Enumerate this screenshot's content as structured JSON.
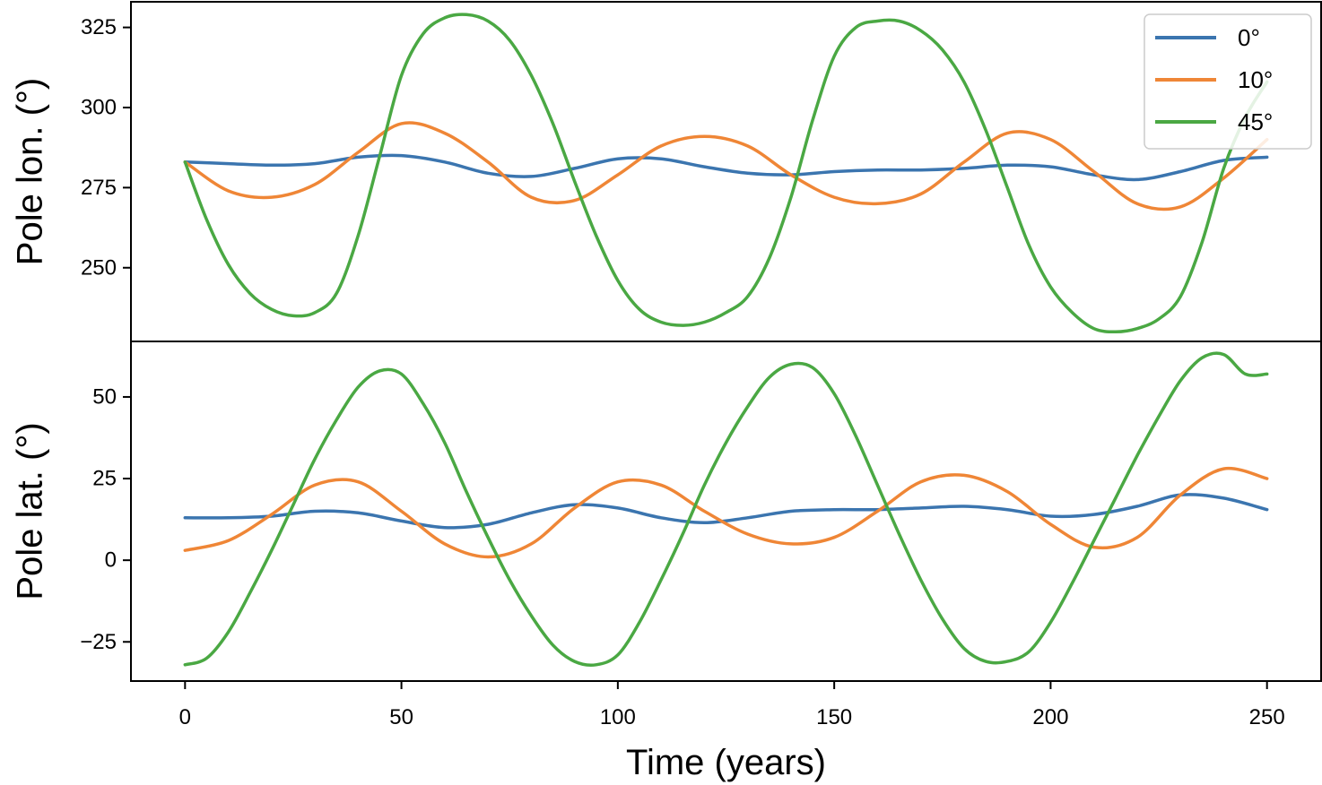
{
  "chart_data": {
    "type": "line",
    "xlabel": "Time (years)",
    "xlim": [
      -12.5,
      262.5
    ],
    "xticks": [
      0,
      50,
      100,
      150,
      200,
      250
    ],
    "xtick_labels": [
      "0",
      "50",
      "100",
      "150",
      "200",
      "250"
    ],
    "legend": {
      "placement": "top-right",
      "entries": [
        {
          "label": "0°",
          "color": "#3b75af"
        },
        {
          "label": "10°",
          "color": "#ef8636"
        },
        {
          "label": "45°",
          "color": "#4aa843"
        }
      ]
    },
    "panels": [
      {
        "id": "lon",
        "ylabel": "Pole lon. (°)",
        "ylim": [
          227,
          333
        ],
        "yticks": [
          250,
          275,
          300,
          325
        ],
        "ytick_labels": [
          "250",
          "275",
          "300",
          "325"
        ],
        "series": [
          {
            "name": "0°",
            "color": "#3b75af",
            "x": [
              0,
              10,
              20,
              30,
              40,
              50,
              60,
              70,
              80,
              90,
              100,
              110,
              120,
              130,
              140,
              150,
              160,
              170,
              180,
              190,
              200,
              210,
              220,
              230,
              240,
              250
            ],
            "y": [
              283,
              282.5,
              282,
              282.5,
              284.5,
              285,
              283,
              279.5,
              278.5,
              281,
              284,
              284,
              281.5,
              279.5,
              279,
              280,
              280.5,
              280.5,
              281,
              282,
              281.5,
              279,
              277.5,
              280,
              283.5,
              284.5
            ]
          },
          {
            "name": "10°",
            "color": "#ef8636",
            "x": [
              0,
              10,
              20,
              30,
              40,
              50,
              60,
              70,
              80,
              90,
              100,
              110,
              120,
              130,
              140,
              150,
              160,
              170,
              180,
              190,
              200,
              210,
              220,
              230,
              240,
              250
            ],
            "y": [
              283,
              274,
              272,
              276,
              286,
              295,
              292,
              283,
              272,
              271,
              279,
              288,
              291,
              288,
              279,
              272,
              270,
              273,
              283,
              292,
              290,
              280,
              270,
              269,
              278,
              290
            ]
          },
          {
            "name": "45°",
            "color": "#4aa843",
            "x": [
              0,
              5,
              10,
              15,
              20,
              25,
              30,
              35,
              40,
              45,
              50,
              55,
              60,
              65,
              70,
              75,
              80,
              85,
              90,
              95,
              100,
              105,
              110,
              115,
              120,
              125,
              130,
              135,
              140,
              145,
              150,
              155,
              160,
              165,
              170,
              175,
              180,
              185,
              190,
              195,
              200,
              205,
              210,
              215,
              220,
              225,
              230,
              235,
              240,
              245,
              250
            ],
            "y": [
              283,
              265,
              251,
              242,
              237,
              235,
              236,
              242,
              260,
              285,
              310,
              323,
              328,
              329,
              327,
              321,
              310,
              295,
              277,
              260,
              246,
              237,
              233,
              232,
              233,
              236,
              241,
              253,
              272,
              296,
              316,
              325,
              327,
              327,
              324,
              318,
              308,
              293,
              275,
              257,
              244,
              236,
              231,
              230,
              231,
              234,
              241,
              258,
              281,
              297,
              308
            ]
          }
        ]
      },
      {
        "id": "lat",
        "ylabel": "Pole lat. (°)",
        "ylim": [
          -37,
          67
        ],
        "yticks": [
          -25,
          0,
          25,
          50
        ],
        "ytick_labels": [
          "−25",
          "0",
          "25",
          "50"
        ],
        "series": [
          {
            "name": "0°",
            "color": "#3b75af",
            "x": [
              0,
              10,
              20,
              30,
              40,
              50,
              60,
              70,
              80,
              90,
              100,
              110,
              120,
              130,
              140,
              150,
              160,
              170,
              180,
              190,
              200,
              210,
              220,
              230,
              240,
              250
            ],
            "y": [
              13,
              13,
              13.5,
              15,
              14.5,
              12,
              10,
              11,
              14.5,
              17,
              16,
              13,
              11.5,
              13,
              15,
              15.5,
              15.5,
              16,
              16.5,
              15.5,
              13.5,
              14,
              16.5,
              20,
              19,
              15.5
            ]
          },
          {
            "name": "10°",
            "color": "#ef8636",
            "x": [
              0,
              10,
              20,
              30,
              40,
              50,
              60,
              70,
              80,
              90,
              100,
              110,
              120,
              130,
              140,
              150,
              160,
              170,
              180,
              190,
              200,
              210,
              220,
              230,
              240,
              250
            ],
            "y": [
              3,
              6,
              14,
              23,
              24,
              15,
              5,
              1,
              5,
              16,
              24,
              23,
              15,
              8,
              5,
              7,
              15,
              24,
              26,
              21,
              11,
              4,
              7,
              20,
              28,
              25
            ]
          },
          {
            "name": "45°",
            "color": "#4aa843",
            "x": [
              0,
              5,
              10,
              15,
              20,
              25,
              30,
              35,
              40,
              45,
              50,
              55,
              60,
              65,
              70,
              75,
              80,
              85,
              90,
              95,
              100,
              105,
              110,
              115,
              120,
              125,
              130,
              135,
              140,
              145,
              150,
              155,
              160,
              165,
              170,
              175,
              180,
              185,
              190,
              195,
              200,
              205,
              210,
              215,
              220,
              225,
              230,
              235,
              240,
              245,
              250
            ],
            "y": [
              -32,
              -30,
              -22,
              -10,
              3,
              17,
              31,
              43,
              53,
              58,
              57,
              48,
              36,
              21,
              7,
              -6,
              -17,
              -26,
              -31,
              -32,
              -29,
              -19,
              -6,
              8,
              23,
              36,
              47,
              56,
              60,
              59,
              51,
              38,
              23,
              8,
              -6,
              -18,
              -27,
              -31,
              -31,
              -28,
              -19,
              -7,
              6,
              19,
              32,
              44,
              55,
              62,
              63,
              57,
              57
            ]
          }
        ]
      }
    ]
  }
}
